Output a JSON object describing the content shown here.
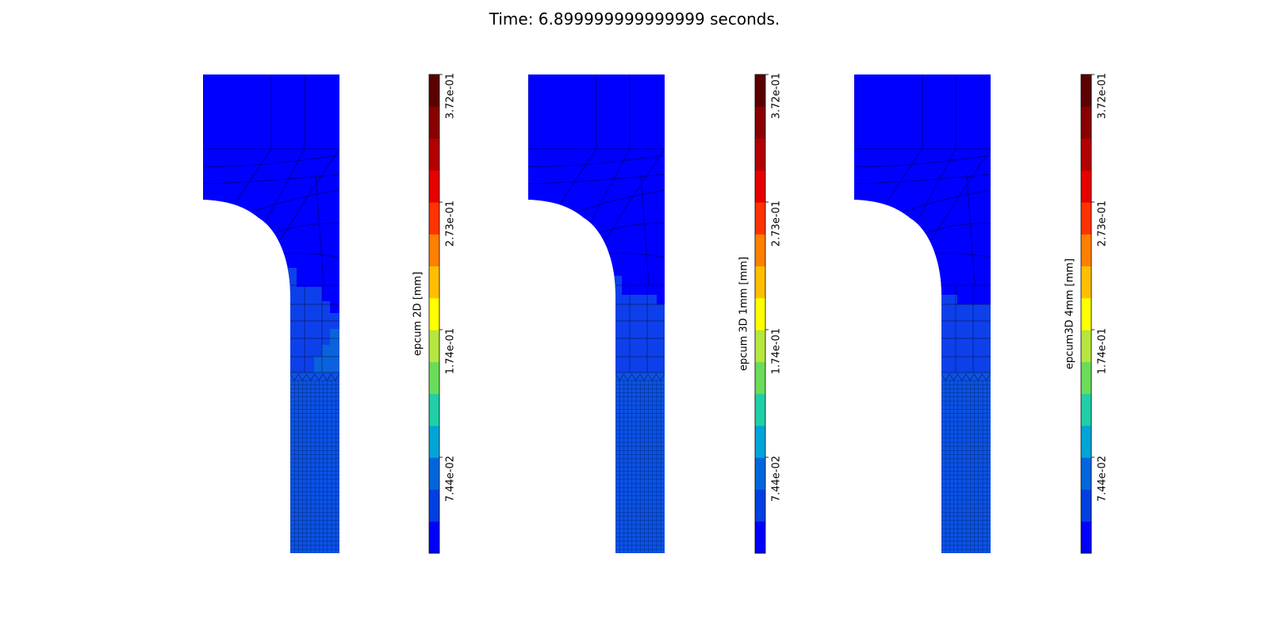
{
  "title": "Time: 6.899999999999999 seconds.",
  "colormap": {
    "levels": [
      "#0000ff",
      "#0040e0",
      "#0066dd",
      "#00a5d8",
      "#20cfa8",
      "#6bdc5a",
      "#b5e73e",
      "#ffff00",
      "#ffbf00",
      "#ff8000",
      "#ff3300",
      "#e60000",
      "#b30000",
      "#8a0000",
      "#5c0000"
    ],
    "tick_labels": [
      "3.72e-01",
      "2.73e-01",
      "1.74e-01",
      "7.44e-02"
    ]
  },
  "panels": [
    {
      "colorbar_label": "epcum  2D [mm]",
      "mode": "2d"
    },
    {
      "colorbar_label": "epcum 3D 1mm [mm]",
      "mode": "3d1"
    },
    {
      "colorbar_label": "epcum3D 4mm [mm]",
      "mode": "3d4"
    }
  ],
  "field_colors": {
    "base": "#0000ff",
    "low": "#0d40ea",
    "mid": "#0b52e6",
    "high": "#0a62dc"
  }
}
